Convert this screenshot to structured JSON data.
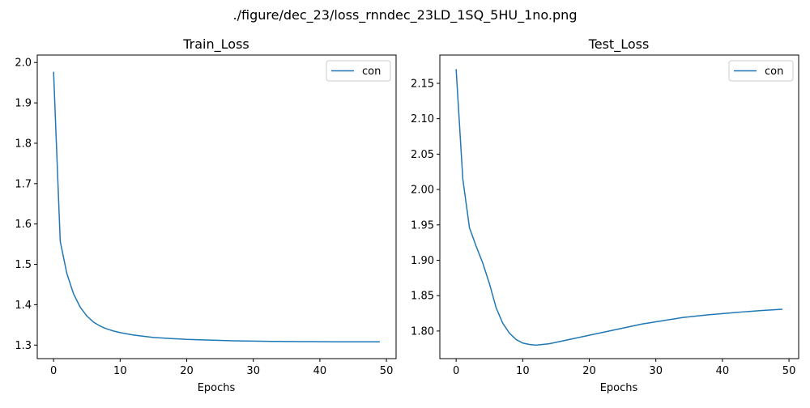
{
  "figure": {
    "suptitle": "./figure/dec_23/loss_rnndec_23LD_1SQ_5HU_1no.png"
  },
  "colors": {
    "series": "#1f77b4",
    "axes": "#000000",
    "legend_border": "#cccccc"
  },
  "chart_data": [
    {
      "type": "line",
      "title": "Train_Loss",
      "xlabel": "Epochs",
      "ylabel": "",
      "xlim": [
        -2.45,
        51.45
      ],
      "ylim": [
        1.2665,
        2.0185
      ],
      "xticks": [
        0,
        10,
        20,
        30,
        40,
        50
      ],
      "yticks": [
        1.3,
        1.4,
        1.5,
        1.6,
        1.7,
        1.8,
        1.9,
        2.0
      ],
      "grid": false,
      "legend": "top-right",
      "series": [
        {
          "name": "con",
          "x": [
            0,
            1,
            2,
            3,
            4,
            5,
            6,
            7,
            8,
            9,
            10,
            11,
            12,
            13,
            14,
            15,
            16,
            17,
            18,
            19,
            20,
            21,
            22,
            23,
            24,
            25,
            26,
            27,
            28,
            29,
            30,
            31,
            32,
            33,
            34,
            35,
            36,
            37,
            38,
            39,
            40,
            41,
            42,
            43,
            44,
            45,
            46,
            47,
            48,
            49
          ],
          "values": [
            1.977,
            1.557,
            1.477,
            1.427,
            1.394,
            1.372,
            1.357,
            1.347,
            1.34,
            1.335,
            1.331,
            1.328,
            1.325,
            1.323,
            1.321,
            1.319,
            1.318,
            1.317,
            1.316,
            1.315,
            1.314,
            1.3135,
            1.313,
            1.3125,
            1.312,
            1.3115,
            1.311,
            1.3107,
            1.3104,
            1.3101,
            1.3098,
            1.3096,
            1.3094,
            1.3092,
            1.309,
            1.3089,
            1.3088,
            1.3087,
            1.3086,
            1.3085,
            1.3084,
            1.3083,
            1.3082,
            1.3082,
            1.3081,
            1.3081,
            1.308,
            1.308,
            1.308,
            1.308
          ]
        }
      ]
    },
    {
      "type": "line",
      "title": "Test_Loss",
      "xlabel": "Epochs",
      "ylabel": "",
      "xlim": [
        -2.45,
        51.45
      ],
      "ylim": [
        1.761,
        2.19
      ],
      "xticks": [
        0,
        10,
        20,
        30,
        40,
        50
      ],
      "yticks": [
        1.8,
        1.85,
        1.9,
        1.95,
        2.0,
        2.05,
        2.1,
        2.15
      ],
      "grid": false,
      "legend": "top-right",
      "series": [
        {
          "name": "con",
          "x": [
            0,
            1,
            2,
            3,
            4,
            5,
            6,
            7,
            8,
            9,
            10,
            11,
            12,
            13,
            14,
            15,
            16,
            17,
            18,
            19,
            20,
            21,
            22,
            23,
            24,
            25,
            26,
            27,
            28,
            29,
            30,
            31,
            32,
            33,
            34,
            35,
            36,
            37,
            38,
            39,
            40,
            41,
            42,
            43,
            44,
            45,
            46,
            47,
            48,
            49
          ],
          "values": [
            2.17,
            2.015,
            1.946,
            1.92,
            1.896,
            1.867,
            1.833,
            1.811,
            1.797,
            1.788,
            1.783,
            1.781,
            1.78,
            1.781,
            1.782,
            1.784,
            1.786,
            1.788,
            1.79,
            1.792,
            1.794,
            1.796,
            1.798,
            1.8,
            1.802,
            1.804,
            1.806,
            1.808,
            1.81,
            1.8115,
            1.813,
            1.8145,
            1.816,
            1.8175,
            1.819,
            1.82,
            1.821,
            1.822,
            1.823,
            1.8238,
            1.8246,
            1.8254,
            1.8262,
            1.827,
            1.8277,
            1.8284,
            1.829,
            1.8296,
            1.8302,
            1.8308
          ]
        }
      ]
    }
  ]
}
